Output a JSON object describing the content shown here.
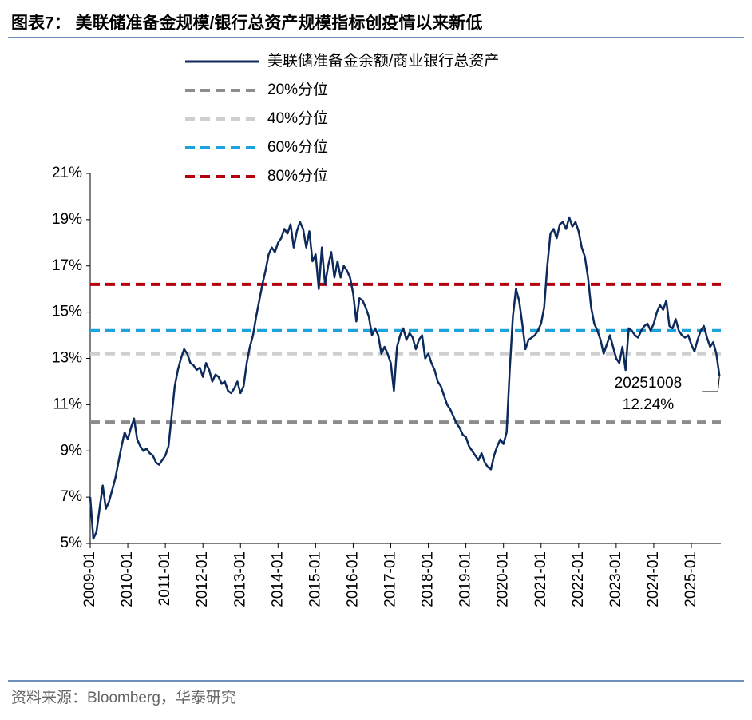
{
  "chart_data": {
    "type": "line",
    "title": "图表7：  美联储准备金规模/银行总资产规模指标创疫情以来新低",
    "source": "资料来源：Bloomberg，华泰研究",
    "x": [
      "2009-01",
      "2009-02",
      "2009-03",
      "2009-04",
      "2009-05",
      "2009-06",
      "2009-07",
      "2009-08",
      "2009-09",
      "2009-10",
      "2009-11",
      "2009-12",
      "2010-01",
      "2010-02",
      "2010-03",
      "2010-04",
      "2010-05",
      "2010-06",
      "2010-07",
      "2010-08",
      "2010-09",
      "2010-10",
      "2010-11",
      "2010-12",
      "2011-01",
      "2011-02",
      "2011-03",
      "2011-04",
      "2011-05",
      "2011-06",
      "2011-07",
      "2011-08",
      "2011-09",
      "2011-10",
      "2011-11",
      "2011-12",
      "2012-01",
      "2012-02",
      "2012-03",
      "2012-04",
      "2012-05",
      "2012-06",
      "2012-07",
      "2012-08",
      "2012-09",
      "2012-10",
      "2012-11",
      "2012-12",
      "2013-01",
      "2013-02",
      "2013-03",
      "2013-04",
      "2013-05",
      "2013-06",
      "2013-07",
      "2013-08",
      "2013-09",
      "2013-10",
      "2013-11",
      "2013-12",
      "2014-01",
      "2014-02",
      "2014-03",
      "2014-04",
      "2014-05",
      "2014-06",
      "2014-07",
      "2014-08",
      "2014-09",
      "2014-10",
      "2014-11",
      "2014-12",
      "2015-01",
      "2015-02",
      "2015-03",
      "2015-04",
      "2015-05",
      "2015-06",
      "2015-07",
      "2015-08",
      "2015-09",
      "2015-10",
      "2015-11",
      "2015-12",
      "2016-01",
      "2016-02",
      "2016-03",
      "2016-04",
      "2016-05",
      "2016-06",
      "2016-07",
      "2016-08",
      "2016-09",
      "2016-10",
      "2016-11",
      "2016-12",
      "2017-01",
      "2017-02",
      "2017-03",
      "2017-04",
      "2017-05",
      "2017-06",
      "2017-07",
      "2017-08",
      "2017-09",
      "2017-10",
      "2017-11",
      "2017-12",
      "2018-01",
      "2018-02",
      "2018-03",
      "2018-04",
      "2018-05",
      "2018-06",
      "2018-07",
      "2018-08",
      "2018-09",
      "2018-10",
      "2018-11",
      "2018-12",
      "2019-01",
      "2019-02",
      "2019-03",
      "2019-04",
      "2019-05",
      "2019-06",
      "2019-07",
      "2019-08",
      "2019-09",
      "2019-10",
      "2019-11",
      "2019-12",
      "2020-01",
      "2020-02",
      "2020-03",
      "2020-04",
      "2020-05",
      "2020-06",
      "2020-07",
      "2020-08",
      "2020-09",
      "2020-10",
      "2020-11",
      "2020-12",
      "2021-01",
      "2021-02",
      "2021-03",
      "2021-04",
      "2021-05",
      "2021-06",
      "2021-07",
      "2021-08",
      "2021-09",
      "2021-10",
      "2021-11",
      "2021-12",
      "2022-01",
      "2022-02",
      "2022-03",
      "2022-04",
      "2022-05",
      "2022-06",
      "2022-07",
      "2022-08",
      "2022-09",
      "2022-10",
      "2022-11",
      "2022-12",
      "2023-01",
      "2023-02",
      "2023-03",
      "2023-04",
      "2023-05",
      "2023-06",
      "2023-07",
      "2023-08",
      "2023-09",
      "2023-10",
      "2023-11",
      "2023-12",
      "2024-01",
      "2024-02",
      "2024-03",
      "2024-04",
      "2024-05",
      "2024-06",
      "2024-07",
      "2024-08",
      "2024-09",
      "2024-10",
      "2024-11",
      "2024-12",
      "2025-01",
      "2025-02",
      "2025-03",
      "2025-04",
      "2025-05",
      "2025-06",
      "2025-07",
      "2025-08",
      "2025-09",
      "2025-10"
    ],
    "series": [
      {
        "name": "美联储准备金余额/商业银行总资产",
        "color": "#0d2a5c",
        "values": [
          7.0,
          5.2,
          5.5,
          6.5,
          7.5,
          6.5,
          6.8,
          7.3,
          7.8,
          8.5,
          9.2,
          9.8,
          9.5,
          10.0,
          10.4,
          9.5,
          9.2,
          9.0,
          9.1,
          8.9,
          8.8,
          8.5,
          8.4,
          8.6,
          8.8,
          9.2,
          10.5,
          11.8,
          12.5,
          13.0,
          13.4,
          13.2,
          12.8,
          12.7,
          12.5,
          12.6,
          12.2,
          12.8,
          12.5,
          12.0,
          12.3,
          12.2,
          11.9,
          12.0,
          11.6,
          11.5,
          11.7,
          12.0,
          11.5,
          11.8,
          12.8,
          13.5,
          14.0,
          14.8,
          15.5,
          16.2,
          16.8,
          17.5,
          17.8,
          17.6,
          18.0,
          18.2,
          18.6,
          18.4,
          18.8,
          17.8,
          18.5,
          18.9,
          18.6,
          17.8,
          18.5,
          17.2,
          17.5,
          16.0,
          17.8,
          16.2,
          17.0,
          17.6,
          16.5,
          17.2,
          16.5,
          17.0,
          16.8,
          16.5,
          15.8,
          14.6,
          15.6,
          15.5,
          15.2,
          14.8,
          14.0,
          14.3,
          14.0,
          13.2,
          13.5,
          13.2,
          12.8,
          11.6,
          13.5,
          14.0,
          14.3,
          13.8,
          14.1,
          13.9,
          13.4,
          13.8,
          14.0,
          13.0,
          13.2,
          12.8,
          12.5,
          12.0,
          11.8,
          11.4,
          11.0,
          10.8,
          10.5,
          10.2,
          10.0,
          9.7,
          9.6,
          9.2,
          9.0,
          8.8,
          8.6,
          8.9,
          8.5,
          8.3,
          8.2,
          8.8,
          9.2,
          9.5,
          9.3,
          9.8,
          12.5,
          14.8,
          16.0,
          15.5,
          14.5,
          13.4,
          13.8,
          13.9,
          14.0,
          14.2,
          14.5,
          15.2,
          17.0,
          18.4,
          18.6,
          18.2,
          18.8,
          18.9,
          18.6,
          19.1,
          18.7,
          18.9,
          18.5,
          17.8,
          17.4,
          16.5,
          15.2,
          14.5,
          14.2,
          13.8,
          13.2,
          13.6,
          14.0,
          13.5,
          13.0,
          12.8,
          13.5,
          12.5,
          14.3,
          14.2,
          14.0,
          13.9,
          14.2,
          14.4,
          14.5,
          14.2,
          14.5,
          15.0,
          15.3,
          15.1,
          15.5,
          14.4,
          14.3,
          14.7,
          14.2,
          14.0,
          13.9,
          14.0,
          13.6,
          13.3,
          13.8,
          14.2,
          14.4,
          13.9,
          13.5,
          13.7,
          13.2,
          12.24
        ]
      }
    ],
    "reference_lines": [
      {
        "name": "20%分位",
        "value": 10.25,
        "color": "#8c8c8c"
      },
      {
        "name": "40%分位",
        "value": 13.2,
        "color": "#cfcfcf"
      },
      {
        "name": "60%分位",
        "value": 14.2,
        "color": "#1aa3dc"
      },
      {
        "name": "80%分位",
        "value": 16.2,
        "color": "#b3000f"
      }
    ],
    "annotation": {
      "date": "20251008",
      "label": "12.24%"
    },
    "ylim": [
      5,
      21
    ],
    "yticks": [
      {
        "value": 5,
        "label": "5%"
      },
      {
        "value": 7,
        "label": "7%"
      },
      {
        "value": 9,
        "label": "9%"
      },
      {
        "value": 11,
        "label": "11%"
      },
      {
        "value": 13,
        "label": "13%"
      },
      {
        "value": 15,
        "label": "15%"
      },
      {
        "value": 17,
        "label": "17%"
      },
      {
        "value": 19,
        "label": "19%"
      },
      {
        "value": 21,
        "label": "21%"
      }
    ],
    "xticks": [
      "2009-01",
      "2010-01",
      "2011-01",
      "2012-01",
      "2013-01",
      "2014-01",
      "2015-01",
      "2016-01",
      "2017-01",
      "2018-01",
      "2019-01",
      "2020-01",
      "2021-01",
      "2022-01",
      "2023-01",
      "2024-01",
      "2025-01"
    ]
  }
}
